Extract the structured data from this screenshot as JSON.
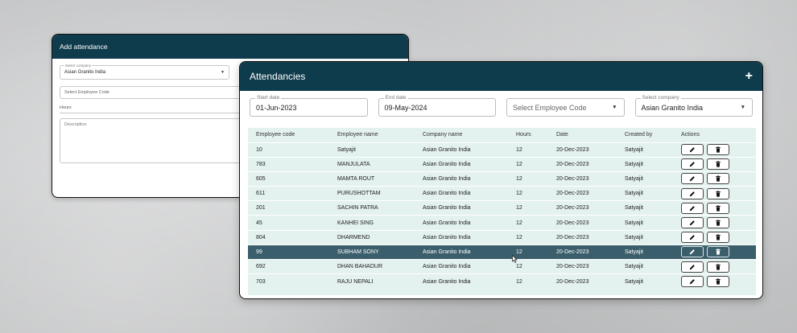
{
  "add_window": {
    "title": "Add attendance",
    "company": {
      "label": "Select company",
      "value": "Asian Granito India"
    },
    "employee_code": {
      "placeholder": "Select Employee Code"
    },
    "hours_label": "Hours",
    "description": {
      "placeholder": "Description"
    }
  },
  "main_window": {
    "title": "Attendancies",
    "add_symbol": "+",
    "filters": {
      "start_date": {
        "label": "Start date",
        "value": "01-Jun-2023"
      },
      "end_date": {
        "label": "End date",
        "value": "09-May-2024"
      },
      "employee_code": {
        "placeholder": "Select Employee Code"
      },
      "company": {
        "label": "Select company",
        "value": "Asian Granito India"
      }
    },
    "columns": [
      "Employee code",
      "Employee name",
      "Company name",
      "Hours",
      "Date",
      "Created by",
      "Actions"
    ],
    "rows": [
      [
        "10",
        "Satyajit",
        "Asian Granito India",
        "12",
        "20-Dec-2023",
        "Satyajit"
      ],
      [
        "783",
        "MANJULATA",
        "Asian Granito India",
        "12",
        "20-Dec-2023",
        "Satyajit"
      ],
      [
        "605",
        "MAMTA ROUT",
        "Asian Granito India",
        "12",
        "20-Dec-2023",
        "Satyajit"
      ],
      [
        "611",
        "PURUSHOTTAM",
        "Asian Granito India",
        "12",
        "20-Dec-2023",
        "Satyajit"
      ],
      [
        "201",
        "SACHIN PATRA",
        "Asian Granito India",
        "12",
        "20-Dec-2023",
        "Satyajit"
      ],
      [
        "45",
        "KANHEI SING",
        "Asian Granito India",
        "12",
        "20-Dec-2023",
        "Satyajit"
      ],
      [
        "804",
        "DHARMEND",
        "Asian Granito India",
        "12",
        "20-Dec-2023",
        "Satyajit"
      ],
      [
        "99",
        "SUBHAM SONY",
        "Asian Granito India",
        "12",
        "20-Dec-2023",
        "Satyajit"
      ],
      [
        "692",
        "DHAN BAHADUR",
        "Asian Granito India",
        "12",
        "20-Dec-2023",
        "Satyajit"
      ],
      [
        "703",
        "RAJU NEPALI",
        "Asian Granito India",
        "12",
        "20-Dec-2023",
        "Satyajit"
      ]
    ],
    "selected_row": 7,
    "row_actions": [
      "pencil-icon",
      "trash-icon"
    ]
  },
  "colors": {
    "header": "#0f3c4c",
    "table_bg": "#e3f1ef",
    "selected_row": "#3a5e6b"
  }
}
